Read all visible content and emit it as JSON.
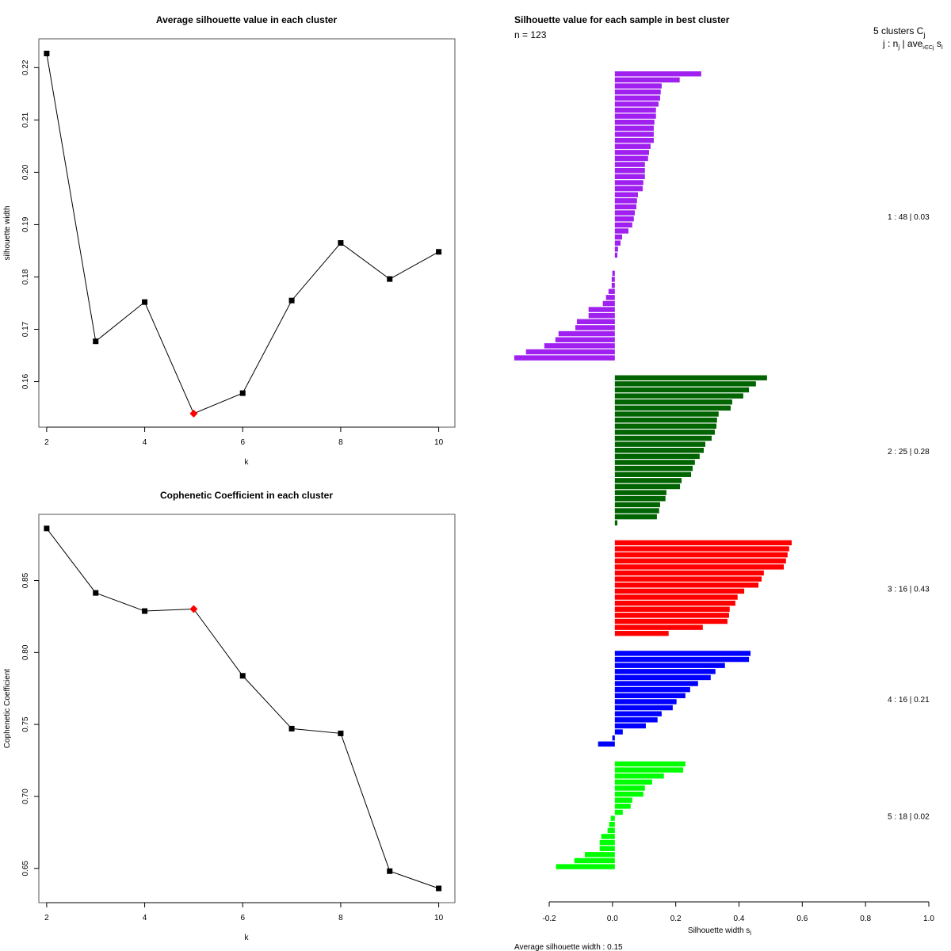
{
  "chart_data": [
    {
      "type": "line",
      "title": "Average silhouette value in each cluster",
      "xlabel": "k",
      "ylabel": "silhouette width",
      "x": [
        2,
        3,
        4,
        5,
        6,
        7,
        8,
        9,
        10
      ],
      "values": [
        0.2227,
        0.1677,
        0.1752,
        0.1539,
        0.1578,
        0.1755,
        0.1865,
        0.1796,
        0.1848
      ],
      "highlight_index": 3,
      "highlight_color": "#ff0000",
      "xticks": [
        2,
        4,
        6,
        8,
        10
      ],
      "xtick_labels": [
        "2",
        "4",
        "6",
        "8",
        "10"
      ],
      "yticks": [
        0.16,
        0.17,
        0.18,
        0.19,
        0.2,
        0.21,
        0.22
      ],
      "ytick_labels": [
        "0.16",
        "0.17",
        "0.18",
        "0.19",
        "0.20",
        "0.21",
        "0.22"
      ],
      "xlim": [
        1.84,
        10.33
      ],
      "ylim": [
        0.1513,
        0.2255
      ]
    },
    {
      "type": "line",
      "title": "Cophenetic Coefficient in each cluster",
      "xlabel": "k",
      "ylabel": "Cophenetic Coefficient",
      "x": [
        2,
        3,
        4,
        5,
        6,
        7,
        8,
        9,
        10
      ],
      "values": [
        0.8862,
        0.8414,
        0.8288,
        0.8302,
        0.7838,
        0.7471,
        0.7438,
        0.6481,
        0.6361
      ],
      "highlight_index": 3,
      "highlight_color": "#ff0000",
      "xticks": [
        2,
        4,
        6,
        8,
        10
      ],
      "xtick_labels": [
        "2",
        "4",
        "6",
        "8",
        "10"
      ],
      "yticks": [
        0.65,
        0.7,
        0.75,
        0.8,
        0.85
      ],
      "ytick_labels": [
        "0.65",
        "0.70",
        "0.75",
        "0.80",
        "0.85"
      ],
      "xlim": [
        1.84,
        10.33
      ],
      "ylim": [
        0.6262,
        0.896
      ]
    },
    {
      "type": "bar",
      "orientation": "horizontal",
      "title": "Silhouette value for each sample in best cluster",
      "subtitle": "n = 123",
      "xlabel": "Silhouette width s",
      "xlabel_subscript": "i",
      "xticks": [
        -0.2,
        0.0,
        0.2,
        0.4,
        0.6,
        0.8,
        1.0
      ],
      "xtick_labels": [
        "-0.2",
        "0.0",
        "0.2",
        "0.4",
        "0.6",
        "0.8",
        "1.0"
      ],
      "xlim": [
        -0.2,
        1.0
      ],
      "legend_header": "5 clusters C",
      "legend_header_sub": "j",
      "legend_subheader": "j :  n",
      "legend_subheader_rest": " | ave",
      "legend_subheader_sub2": "i∈Cj",
      "legend_subheader_end": " s",
      "legend_subheader_sub3": "i",
      "footer": "Average silhouette width :  0.15",
      "clusters": [
        {
          "id": 1,
          "n": 48,
          "avg": "0.03",
          "label": "1 :  48  |  0.03",
          "color": "#a020f0",
          "values": [
            0.273,
            0.205,
            0.148,
            0.145,
            0.143,
            0.138,
            0.13,
            0.13,
            0.125,
            0.123,
            0.123,
            0.123,
            0.113,
            0.108,
            0.105,
            0.095,
            0.095,
            0.095,
            0.09,
            0.088,
            0.073,
            0.07,
            0.068,
            0.063,
            0.06,
            0.055,
            0.043,
            0.023,
            0.018,
            0.01,
            0.008,
            0.0,
            0.0,
            -0.008,
            -0.01,
            -0.01,
            -0.02,
            -0.028,
            -0.038,
            -0.083,
            -0.083,
            -0.12,
            -0.125,
            -0.178,
            -0.188,
            -0.223,
            -0.281,
            -0.318
          ]
        },
        {
          "id": 2,
          "n": 25,
          "avg": "0.28",
          "label": "2 :  25  |  0.28",
          "color": "#006400",
          "values": [
            0.481,
            0.446,
            0.424,
            0.406,
            0.371,
            0.366,
            0.328,
            0.323,
            0.321,
            0.316,
            0.306,
            0.286,
            0.281,
            0.268,
            0.253,
            0.246,
            0.241,
            0.211,
            0.206,
            0.163,
            0.16,
            0.143,
            0.14,
            0.133,
            0.008
          ]
        },
        {
          "id": 3,
          "n": 16,
          "avg": "0.43",
          "label": "3 :  16  |  0.43",
          "color": "#ff0000",
          "values": [
            0.559,
            0.551,
            0.546,
            0.541,
            0.534,
            0.471,
            0.464,
            0.454,
            0.409,
            0.388,
            0.381,
            0.363,
            0.361,
            0.356,
            0.278,
            0.17
          ]
        },
        {
          "id": 4,
          "n": 16,
          "avg": "0.21",
          "label": "4 :  16  |  0.21",
          "color": "#0000ff",
          "values": [
            0.429,
            0.424,
            0.348,
            0.318,
            0.303,
            0.263,
            0.238,
            0.223,
            0.195,
            0.183,
            0.148,
            0.135,
            0.098,
            0.025,
            -0.008,
            -0.053
          ]
        },
        {
          "id": 5,
          "n": 18,
          "avg": "0.02",
          "label": "5 :  18  |  0.02",
          "color": "#00ff00",
          "values": [
            0.223,
            0.216,
            0.155,
            0.118,
            0.095,
            0.09,
            0.055,
            0.05,
            0.025,
            -0.013,
            -0.018,
            -0.023,
            -0.043,
            -0.048,
            -0.048,
            -0.095,
            -0.128,
            -0.186
          ]
        }
      ]
    }
  ]
}
